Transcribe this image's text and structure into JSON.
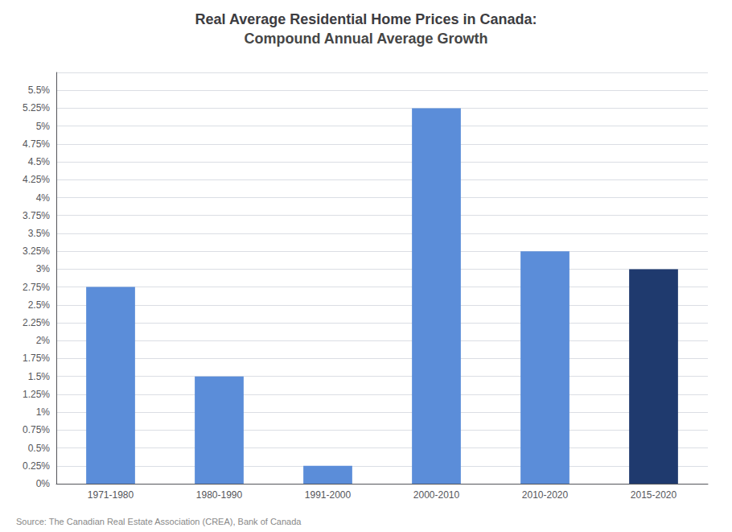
{
  "chart_data": {
    "type": "bar",
    "title": "Real Average Residential Home Prices in Canada:",
    "subtitle": "Compound Annual Average Growth",
    "annotations": [
      "Source: The Canadian Real Estate Association (CREA), Bank of Canada"
    ],
    "categories": [
      "1971-1980",
      "1980-1990",
      "1991-2000",
      "2000-2010",
      "2010-2020",
      "2015-2020"
    ],
    "values": [
      2.75,
      1.5,
      0.25,
      5.25,
      3.25,
      3.0
    ],
    "colors": [
      "#5B8DD9",
      "#5B8DD9",
      "#5B8DD9",
      "#5B8DD9",
      "#5B8DD9",
      "#1F3A6E"
    ],
    "ylim": [
      0.0,
      5.75
    ],
    "yticks": [
      {
        "value": 0.0,
        "label": "0%"
      },
      {
        "value": 0.25,
        "label": "0.25%"
      },
      {
        "value": 0.5,
        "label": "0.5%"
      },
      {
        "value": 0.75,
        "label": "0.75%"
      },
      {
        "value": 1.0,
        "label": "1%"
      },
      {
        "value": 1.25,
        "label": "1.25%"
      },
      {
        "value": 1.5,
        "label": "1.5%"
      },
      {
        "value": 1.75,
        "label": "1.75%"
      },
      {
        "value": 2.0,
        "label": "2%"
      },
      {
        "value": 2.25,
        "label": "2.25%"
      },
      {
        "value": 2.5,
        "label": "2.5%"
      },
      {
        "value": 2.75,
        "label": "2.75%"
      },
      {
        "value": 3.0,
        "label": "3%"
      },
      {
        "value": 3.25,
        "label": "3.25%"
      },
      {
        "value": 3.5,
        "label": "3.5%"
      },
      {
        "value": 3.75,
        "label": "3.75%"
      },
      {
        "value": 4.0,
        "label": "4%"
      },
      {
        "value": 4.25,
        "label": "4.25%"
      },
      {
        "value": 4.5,
        "label": "4.5%"
      },
      {
        "value": 4.75,
        "label": "4.75%"
      },
      {
        "value": 5.0,
        "label": "5%"
      },
      {
        "value": 5.25,
        "label": "5.25%"
      },
      {
        "value": 5.5,
        "label": "5.5%"
      }
    ],
    "grid": true
  }
}
